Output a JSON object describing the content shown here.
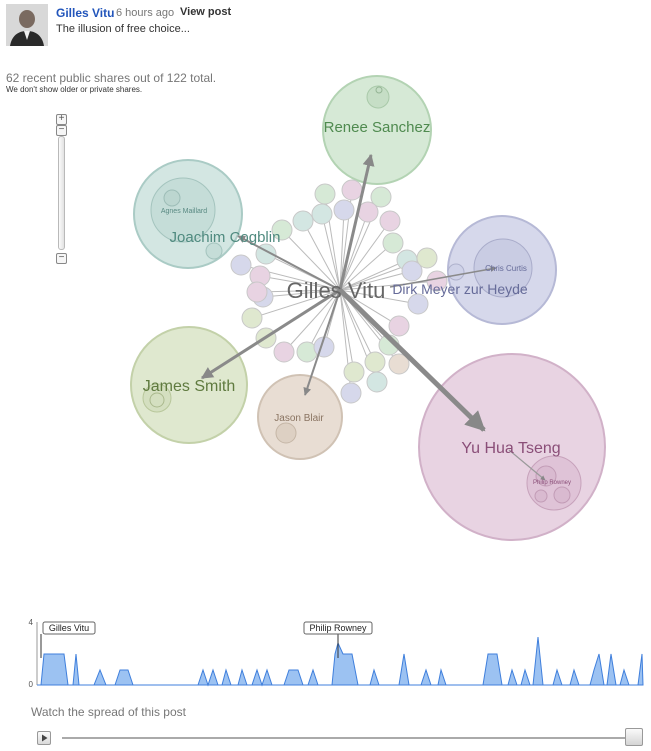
{
  "post": {
    "author": "Gilles Vitu",
    "time": "6 hours ago",
    "view_post_label": "View post",
    "text": "The illusion of free choice..."
  },
  "summary": {
    "shares_text": "62 recent public shares out of 122 total.",
    "note": "We don't show older or private shares."
  },
  "zoom": {
    "plus_label": "+",
    "minus_label": "−"
  },
  "graph": {
    "center": "Gilles Vitu",
    "clusters": {
      "renee": "Renee Sanchez",
      "joachim": "Joachim Cogblin",
      "agnes": "Agnes Maillard",
      "dirk": "Dirk Meyer zur Heyde",
      "chris": "Chris Curtis",
      "james": "James Smith",
      "jason": "Jason Blair",
      "yuhua": "Yu Hua Tseng",
      "philip": "Philip Rowney"
    }
  },
  "timeline": {
    "y_max_label": "4",
    "y_min_label": "0",
    "flags": [
      "Gilles Vitu",
      "Philip Rowney"
    ],
    "caption": "Watch the spread of this post"
  },
  "colors": {
    "green": "#d6e9d6",
    "teal": "#d3e6e2",
    "lavender": "#d6d8eb",
    "sage": "#dfe8cf",
    "tan": "#e8ddd3",
    "pink": "#e8d3e2",
    "chart_fill": "#9cc2f2",
    "chart_line": "#3f7fdc"
  }
}
